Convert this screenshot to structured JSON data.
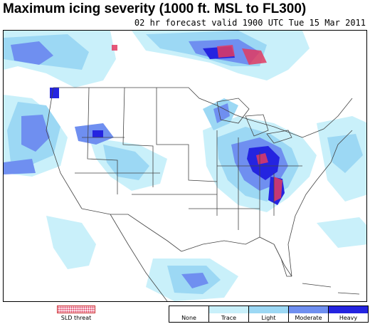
{
  "title": "Maximum icing severity (1000 ft. MSL to FL300)",
  "subtitle": "02 hr forecast valid 1900 UTC Tue 15 Mar 2011",
  "sld_legend": {
    "label": "SLD threat",
    "color": "#e23b62"
  },
  "legend": [
    {
      "label": "None",
      "color": "#ffffff"
    },
    {
      "label": "Trace",
      "color": "#c9f0fa"
    },
    {
      "label": "Light",
      "color": "#9cd8f4"
    },
    {
      "label": "Moderate",
      "color": "#6f8ff0"
    },
    {
      "label": "Heavy",
      "color": "#2424e0"
    }
  ]
}
